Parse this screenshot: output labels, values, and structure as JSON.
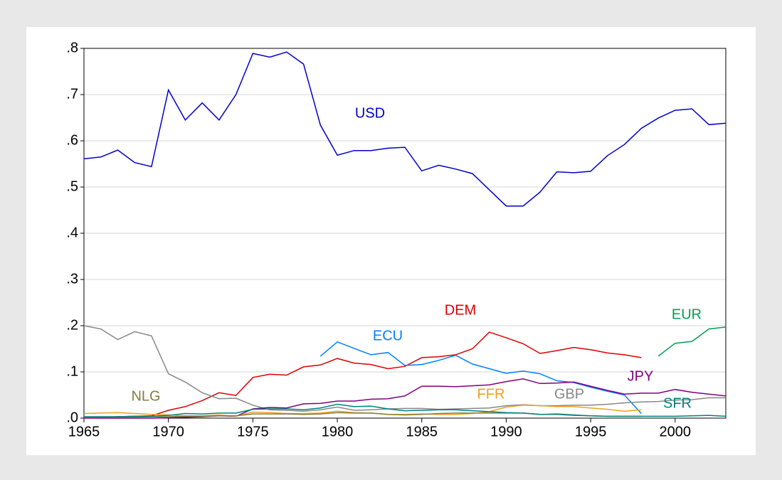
{
  "chart_data": {
    "type": "line",
    "x": [
      1965,
      1966,
      1967,
      1968,
      1969,
      1970,
      1971,
      1972,
      1973,
      1974,
      1975,
      1976,
      1977,
      1978,
      1979,
      1980,
      1981,
      1982,
      1983,
      1984,
      1985,
      1986,
      1987,
      1988,
      1989,
      1990,
      1991,
      1992,
      1993,
      1994,
      1995,
      1996,
      1997,
      1998,
      1999,
      2000,
      2001,
      2002,
      2003
    ],
    "xlim": [
      1965,
      2003
    ],
    "xticks": [
      1965,
      1970,
      1975,
      1980,
      1985,
      1990,
      1995,
      2000
    ],
    "ylim": [
      0,
      0.8
    ],
    "yticks": [
      {
        "value": 0,
        "label": ".0"
      },
      {
        "value": 0.1,
        "label": ".1"
      },
      {
        "value": 0.2,
        "label": ".2"
      },
      {
        "value": 0.3,
        "label": ".3"
      },
      {
        "value": 0.4,
        "label": ".4"
      },
      {
        "value": 0.5,
        "label": ".5"
      },
      {
        "value": 0.6,
        "label": ".6"
      },
      {
        "value": 0.7,
        "label": ".7"
      },
      {
        "value": 0.8,
        "label": ".8"
      }
    ],
    "grid": true,
    "series": [
      {
        "name": "USD",
        "color": "#0000cc",
        "values": [
          0.561,
          0.565,
          0.58,
          0.553,
          0.544,
          0.71,
          0.645,
          0.682,
          0.645,
          0.7,
          0.789,
          0.781,
          0.792,
          0.766,
          0.634,
          0.569,
          0.579,
          0.579,
          0.584,
          0.586,
          0.535,
          0.547,
          0.539,
          0.529,
          0.494,
          0.459,
          0.459,
          0.489,
          0.533,
          0.531,
          0.534,
          0.568,
          0.592,
          0.627,
          0.649,
          0.666,
          0.669,
          0.635,
          0.638
        ]
      },
      {
        "name": "DEM",
        "color": "#dd0000",
        "values": [
          0.002,
          0.002,
          0.003,
          0.004,
          0.005,
          0.017,
          0.025,
          0.038,
          0.055,
          0.049,
          0.088,
          0.095,
          0.093,
          0.111,
          0.115,
          0.129,
          0.119,
          0.116,
          0.107,
          0.112,
          0.131,
          0.133,
          0.137,
          0.15,
          0.186,
          0.174,
          0.161,
          0.14,
          0.146,
          0.153,
          0.148,
          0.141,
          0.137,
          0.131,
          null,
          null,
          null,
          null,
          null
        ]
      },
      {
        "name": "EUR",
        "color": "#00a050",
        "values": [
          null,
          null,
          null,
          null,
          null,
          null,
          null,
          null,
          null,
          null,
          null,
          null,
          null,
          null,
          null,
          null,
          null,
          null,
          null,
          null,
          null,
          null,
          null,
          null,
          null,
          null,
          null,
          null,
          null,
          null,
          null,
          null,
          null,
          null,
          0.134,
          0.162,
          0.166,
          0.193,
          0.197
        ]
      },
      {
        "name": "ECU",
        "color": "#0080ff",
        "values": [
          null,
          null,
          null,
          null,
          null,
          null,
          null,
          null,
          null,
          null,
          null,
          null,
          null,
          null,
          0.134,
          0.165,
          0.151,
          0.137,
          0.142,
          0.114,
          0.116,
          0.125,
          0.136,
          0.117,
          0.107,
          0.097,
          0.102,
          0.096,
          0.081,
          0.077,
          0.067,
          0.058,
          0.05,
          0.01,
          null,
          null,
          null,
          null,
          null
        ]
      },
      {
        "name": "GBP",
        "color": "#888888",
        "values": [
          0.2,
          0.193,
          0.17,
          0.187,
          0.178,
          0.096,
          0.078,
          0.055,
          0.042,
          0.043,
          0.028,
          0.018,
          0.017,
          0.015,
          0.018,
          0.024,
          0.017,
          0.018,
          0.02,
          0.021,
          0.021,
          0.019,
          0.02,
          0.021,
          0.022,
          0.027,
          0.029,
          0.027,
          0.027,
          0.028,
          0.028,
          0.03,
          0.033,
          0.035,
          0.036,
          0.039,
          0.04,
          0.044,
          0.044
        ]
      },
      {
        "name": "JPY",
        "color": "#800080",
        "values": [
          0,
          0,
          0,
          0,
          0,
          0.001,
          0.002,
          0.003,
          0.005,
          0.004,
          0.02,
          0.023,
          0.022,
          0.031,
          0.032,
          0.037,
          0.037,
          0.041,
          0.042,
          0.048,
          0.069,
          0.069,
          0.068,
          0.07,
          0.072,
          0.079,
          0.085,
          0.075,
          0.076,
          0.078,
          0.069,
          0.06,
          0.052,
          0.054,
          0.054,
          0.062,
          0.056,
          0.052,
          0.048
        ]
      },
      {
        "name": "FFR",
        "color": "#f0a020",
        "values": [
          0.01,
          0.011,
          0.012,
          0.01,
          0.008,
          0.007,
          0.005,
          0.005,
          0.007,
          0.004,
          0.013,
          0.012,
          0.01,
          0.01,
          0.011,
          0.015,
          0.012,
          0.011,
          0.008,
          0.008,
          0.009,
          0.008,
          0.008,
          0.01,
          0.014,
          0.024,
          0.028,
          0.027,
          0.025,
          0.025,
          0.022,
          0.019,
          0.015,
          0.018,
          null,
          null,
          null,
          null,
          null
        ]
      },
      {
        "name": "NLG",
        "color": "#808040",
        "values": [
          0.002,
          0.002,
          0.002,
          0.002,
          0.003,
          0.003,
          0.004,
          0.004,
          0.005,
          0.005,
          0.009,
          0.009,
          0.009,
          0.008,
          0.009,
          0.012,
          0.011,
          0.011,
          0.008,
          0.007,
          0.008,
          0.01,
          0.011,
          0.011,
          0.011,
          0.011,
          0.011,
          0.008,
          0.008,
          0.006,
          0.005,
          0.004,
          0.004,
          0.004,
          null,
          null,
          null,
          null,
          null
        ]
      },
      {
        "name": "SFR",
        "color": "#008080",
        "values": [
          0.003,
          0.003,
          0.003,
          0.004,
          0.004,
          0.006,
          0.01,
          0.009,
          0.011,
          0.011,
          0.019,
          0.02,
          0.02,
          0.018,
          0.022,
          0.03,
          0.025,
          0.026,
          0.02,
          0.016,
          0.017,
          0.018,
          0.018,
          0.016,
          0.014,
          0.012,
          0.011,
          0.008,
          0.009,
          0.007,
          0.005,
          0.004,
          0.004,
          0.004,
          0.004,
          0.004,
          0.005,
          0.006,
          0.004
        ]
      }
    ]
  }
}
